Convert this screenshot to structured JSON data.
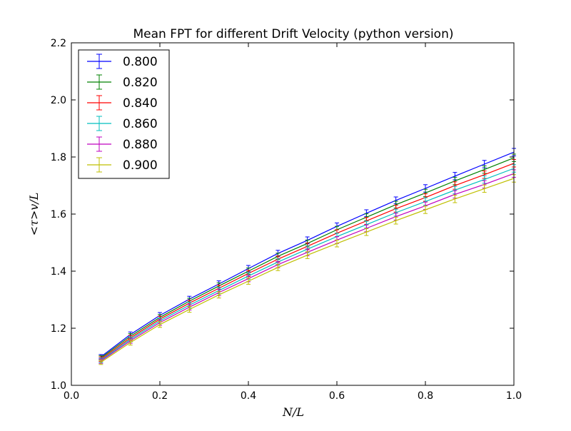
{
  "chart_data": {
    "type": "line",
    "title": "Mean FPT for different Drift Velocity (python version)",
    "xlabel": "N/L",
    "ylabel": "<τ>v/L",
    "xlim": [
      0.0,
      1.0
    ],
    "ylim": [
      1.0,
      2.2
    ],
    "xticks": [
      0.0,
      0.2,
      0.4,
      0.6,
      0.8,
      1.0
    ],
    "xtick_labels": [
      "0.0",
      "0.2",
      "0.4",
      "0.6",
      "0.8",
      "1.0"
    ],
    "yticks": [
      1.0,
      1.2,
      1.4,
      1.6,
      1.8,
      2.0,
      2.2
    ],
    "ytick_labels": [
      "1.0",
      "1.2",
      "1.4",
      "1.6",
      "1.8",
      "2.0",
      "2.2"
    ],
    "grid": false,
    "legend_position": "top-left",
    "error_bars": true,
    "x": [
      0.0667,
      0.1333,
      0.2,
      0.2667,
      0.3333,
      0.4,
      0.4667,
      0.5333,
      0.6,
      0.6667,
      0.7333,
      0.8,
      0.8667,
      0.9333,
      1.0
    ],
    "series": [
      {
        "name": "0.800",
        "color": "#0000ff",
        "values": [
          1.1,
          1.178,
          1.245,
          1.302,
          1.355,
          1.409,
          1.462,
          1.508,
          1.557,
          1.603,
          1.648,
          1.69,
          1.733,
          1.775,
          1.817
        ],
        "errors": [
          0.008,
          0.009,
          0.01,
          0.01,
          0.011,
          0.011,
          0.011,
          0.012,
          0.012,
          0.012,
          0.012,
          0.013,
          0.013,
          0.013,
          0.013
        ]
      },
      {
        "name": "0.820",
        "color": "#008000",
        "values": [
          1.096,
          1.172,
          1.238,
          1.295,
          1.348,
          1.4,
          1.452,
          1.497,
          1.545,
          1.589,
          1.633,
          1.674,
          1.716,
          1.756,
          1.797
        ],
        "errors": [
          0.008,
          0.009,
          0.01,
          0.01,
          0.011,
          0.011,
          0.011,
          0.012,
          0.012,
          0.012,
          0.012,
          0.013,
          0.013,
          0.013,
          0.013
        ]
      },
      {
        "name": "0.840",
        "color": "#ff0000",
        "values": [
          1.092,
          1.166,
          1.232,
          1.288,
          1.34,
          1.392,
          1.442,
          1.487,
          1.533,
          1.576,
          1.619,
          1.658,
          1.7,
          1.738,
          1.778
        ],
        "errors": [
          0.008,
          0.009,
          0.01,
          0.01,
          0.011,
          0.011,
          0.011,
          0.012,
          0.012,
          0.012,
          0.012,
          0.013,
          0.013,
          0.013,
          0.013
        ]
      },
      {
        "name": "0.860",
        "color": "#00bfbf",
        "values": [
          1.088,
          1.161,
          1.226,
          1.281,
          1.332,
          1.383,
          1.432,
          1.477,
          1.521,
          1.563,
          1.605,
          1.644,
          1.684,
          1.721,
          1.76
        ],
        "errors": [
          0.008,
          0.009,
          0.01,
          0.01,
          0.011,
          0.011,
          0.011,
          0.012,
          0.012,
          0.012,
          0.012,
          0.013,
          0.013,
          0.013,
          0.013
        ]
      },
      {
        "name": "0.880",
        "color": "#bf00bf",
        "values": [
          1.085,
          1.156,
          1.22,
          1.274,
          1.325,
          1.374,
          1.423,
          1.466,
          1.509,
          1.55,
          1.591,
          1.629,
          1.669,
          1.704,
          1.742
        ],
        "errors": [
          0.008,
          0.009,
          0.01,
          0.01,
          0.011,
          0.011,
          0.011,
          0.012,
          0.012,
          0.012,
          0.012,
          0.013,
          0.013,
          0.013,
          0.013
        ]
      },
      {
        "name": "0.900",
        "color": "#bfbf00",
        "values": [
          1.081,
          1.15,
          1.213,
          1.266,
          1.317,
          1.365,
          1.413,
          1.456,
          1.497,
          1.537,
          1.577,
          1.615,
          1.653,
          1.689,
          1.725
        ],
        "errors": [
          0.008,
          0.009,
          0.01,
          0.01,
          0.011,
          0.011,
          0.011,
          0.012,
          0.012,
          0.012,
          0.012,
          0.013,
          0.013,
          0.013,
          0.013
        ]
      }
    ]
  }
}
